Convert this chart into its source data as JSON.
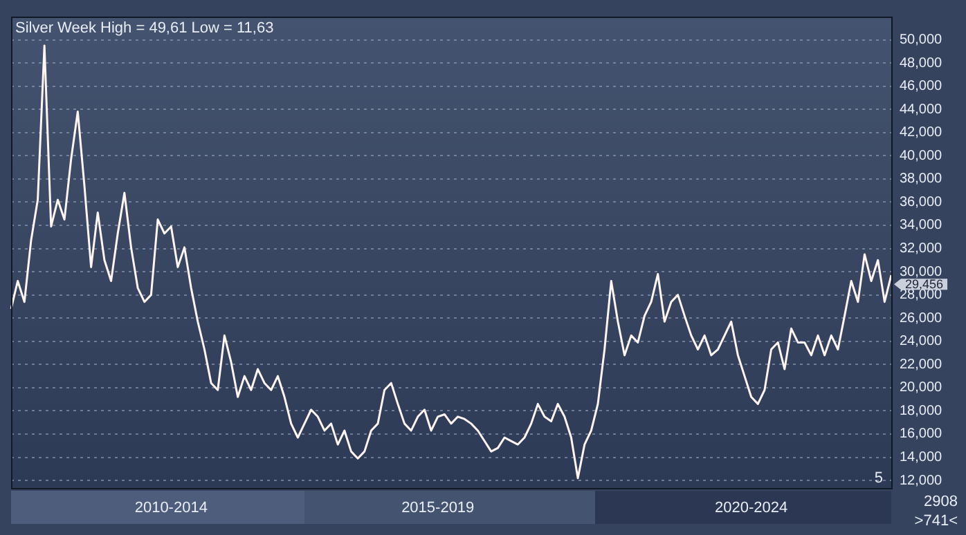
{
  "chart_data": {
    "type": "line",
    "title": "Silver Week High = 49,61 Low = 11,63",
    "categories": [
      null,
      null,
      null,
      null,
      null,
      null,
      null,
      null,
      null,
      null,
      null,
      null,
      null,
      null,
      null,
      null,
      null,
      null,
      null,
      null,
      null,
      null,
      null,
      null,
      "2010-2014",
      null,
      null,
      null,
      null,
      null,
      null,
      null,
      null,
      null,
      null,
      null,
      null,
      null,
      null,
      null,
      null,
      null,
      null,
      null,
      null,
      null,
      null,
      null,
      null,
      null,
      null,
      null,
      null,
      null,
      null,
      null,
      null,
      null,
      null,
      null,
      null,
      null,
      null,
      null,
      "2015-2019",
      null,
      null,
      null,
      null,
      null,
      null,
      null,
      null,
      null,
      null,
      null,
      null,
      null,
      null,
      null,
      null,
      null,
      null,
      null,
      null,
      null,
      null,
      null,
      null,
      null,
      null,
      null,
      null,
      null,
      null,
      null,
      null,
      null,
      null,
      null,
      null,
      null,
      null,
      null,
      null,
      null,
      null,
      null,
      null,
      null,
      null,
      "2020-2024",
      null,
      null,
      null,
      null,
      null,
      null,
      null,
      null,
      null,
      null,
      null,
      null,
      null,
      null,
      null,
      null,
      null,
      null,
      null,
      null,
      null
    ],
    "series": [
      {
        "color": "#fff5f0",
        "values": [
          26800,
          29200,
          27400,
          32700,
          36200,
          49500,
          33900,
          36200,
          34500,
          39700,
          43800,
          37400,
          30400,
          35100,
          31000,
          29200,
          33300,
          36800,
          32100,
          28600,
          27400,
          28000,
          34500,
          33300,
          33900,
          30400,
          32100,
          28600,
          25700,
          23300,
          20400,
          19800,
          24500,
          22200,
          19200,
          21000,
          19800,
          21600,
          20400,
          19800,
          21000,
          19200,
          16900,
          15700,
          16900,
          18100,
          17500,
          16300,
          16900,
          15100,
          16300,
          14500,
          13900,
          14500,
          16300,
          16900,
          19800,
          20400,
          18600,
          16900,
          16300,
          17500,
          18100,
          16300,
          17500,
          17700,
          16900,
          17500,
          17300,
          16900,
          16300,
          15400,
          14500,
          14800,
          15700,
          15400,
          15100,
          15700,
          16900,
          18600,
          17500,
          17100,
          18600,
          17500,
          15700,
          12200,
          15100,
          16300,
          18600,
          23300,
          29200,
          25700,
          22800,
          24500,
          23900,
          26200,
          27400,
          29800,
          25700,
          27400,
          28000,
          26200,
          24500,
          23300,
          24500,
          22800,
          23300,
          24500,
          25700,
          22800,
          21000,
          19200,
          18600,
          19800,
          23300,
          23900,
          21600,
          25100,
          23900,
          23900,
          22800,
          24500,
          22800,
          24500,
          23300,
          26200,
          29200,
          27400,
          31500,
          29200,
          31000,
          27400,
          29700
        ]
      }
    ],
    "ylim": [
      11350,
      52000
    ],
    "yticks": [
      {
        "value": 12000,
        "label": "12,000"
      },
      {
        "value": 14000,
        "label": "14,000"
      },
      {
        "value": 16000,
        "label": "16,000"
      },
      {
        "value": 18000,
        "label": "18,000"
      },
      {
        "value": 20000,
        "label": "20,000"
      },
      {
        "value": 22000,
        "label": "22,000"
      },
      {
        "value": 24000,
        "label": "24,000"
      },
      {
        "value": 26000,
        "label": "26,000"
      },
      {
        "value": 28000,
        "label": "28,000"
      },
      {
        "value": 30000,
        "label": "30,000"
      },
      {
        "value": 32000,
        "label": "32,000"
      },
      {
        "value": 34000,
        "label": "34,000"
      },
      {
        "value": 36000,
        "label": "36,000"
      },
      {
        "value": 38000,
        "label": "38,000"
      },
      {
        "value": 40000,
        "label": "40,000"
      },
      {
        "value": 42000,
        "label": "42,000"
      },
      {
        "value": 44000,
        "label": "44,000"
      },
      {
        "value": 46000,
        "label": "46,000"
      },
      {
        "value": 48000,
        "label": "48,000"
      },
      {
        "value": 50000,
        "label": "50,000"
      }
    ],
    "annotations": [
      "29,456",
      "5",
      "2908",
      ">741<"
    ],
    "grid": "y",
    "marker": "none",
    "line_style": "solid",
    "legend": false
  }
}
